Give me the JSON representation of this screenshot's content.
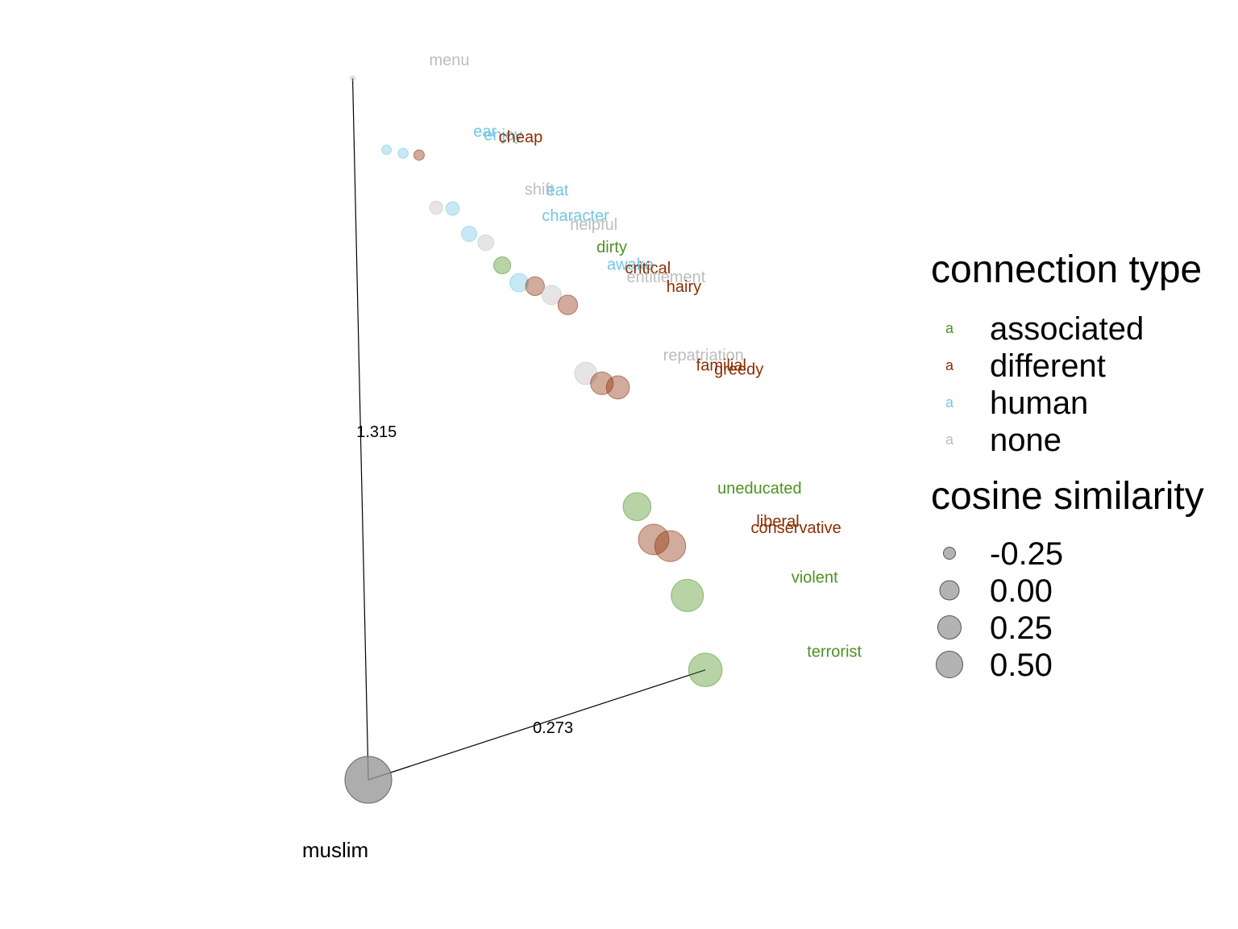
{
  "chart_data": {
    "type": "scatter",
    "title": "",
    "xlabel": "",
    "ylabel": "",
    "grid": false,
    "legend_position": "right",
    "anchor": {
      "label": "muslim",
      "size": 1.0,
      "x": 0,
      "y": 0,
      "color": "#999999"
    },
    "edges": [
      {
        "to": "menu",
        "label": "1.315"
      },
      {
        "to": "terrorist",
        "label": "0.273"
      }
    ],
    "colors": {
      "associated": "#4d9221",
      "different": "#8c2d04",
      "human": "#74c6e5",
      "none": "#bdbdbd"
    },
    "points": [
      {
        "word": "menu",
        "type": "none",
        "similarity": -0.33,
        "x": 0.0,
        "y": 1.315
      },
      {
        "word": "ear",
        "type": "human",
        "similarity": -0.22,
        "x": 0.061,
        "y": 1.178
      },
      {
        "word": "enjoy",
        "type": "human",
        "similarity": -0.21,
        "x": 0.092,
        "y": 1.17
      },
      {
        "word": "cheap",
        "type": "different",
        "similarity": -0.2,
        "x": 0.122,
        "y": 1.165
      },
      {
        "word": "shift",
        "type": "none",
        "similarity": -0.14,
        "x": 0.152,
        "y": 1.065
      },
      {
        "word": "eat",
        "type": "human",
        "similarity": -0.13,
        "x": 0.183,
        "y": 1.062
      },
      {
        "word": "character",
        "type": "human",
        "similarity": -0.09,
        "x": 0.213,
        "y": 1.013
      },
      {
        "word": "helpful",
        "type": "none",
        "similarity": -0.08,
        "x": 0.244,
        "y": 0.995
      },
      {
        "word": "dirty",
        "type": "associated",
        "similarity": -0.05,
        "x": 0.274,
        "y": 0.951
      },
      {
        "word": "awake",
        "type": "human",
        "similarity": -0.02,
        "x": 0.305,
        "y": 0.917
      },
      {
        "word": "critical",
        "type": "different",
        "similarity": -0.01,
        "x": 0.335,
        "y": 0.909
      },
      {
        "word": "entitlement",
        "type": "none",
        "similarity": 0.0,
        "x": 0.366,
        "y": 0.891
      },
      {
        "word": "hairy",
        "type": "different",
        "similarity": 0.01,
        "x": 0.396,
        "y": 0.871
      },
      {
        "word": "repatriation",
        "type": "none",
        "similarity": 0.07,
        "x": 0.427,
        "y": 0.741
      },
      {
        "word": "familial",
        "type": "different",
        "similarity": 0.08,
        "x": 0.457,
        "y": 0.721
      },
      {
        "word": "greedy",
        "type": "different",
        "similarity": 0.09,
        "x": 0.487,
        "y": 0.712
      },
      {
        "word": "uneducated",
        "type": "associated",
        "similarity": 0.2,
        "x": 0.518,
        "y": 0.487
      },
      {
        "word": "liberal",
        "type": "different",
        "similarity": 0.26,
        "x": 0.548,
        "y": 0.424
      },
      {
        "word": "conservative",
        "type": "different",
        "similarity": 0.27,
        "x": 0.579,
        "y": 0.41
      },
      {
        "word": "violent",
        "type": "associated",
        "similarity": 0.3,
        "x": 0.609,
        "y": 0.316
      },
      {
        "word": "terrorist",
        "type": "associated",
        "similarity": 0.33,
        "x": 0.64,
        "y": 0.175
      }
    ],
    "legend": {
      "color_title": "connection type",
      "color_entries": [
        {
          "key": "associated",
          "label": "associated"
        },
        {
          "key": "different",
          "label": "different"
        },
        {
          "key": "human",
          "label": "human"
        },
        {
          "key": "none",
          "label": "none"
        }
      ],
      "key_glyph": "a",
      "size_title": "cosine similarity",
      "size_entries": [
        {
          "value": -0.25,
          "label": "-0.25"
        },
        {
          "value": 0.0,
          "label": "0.00"
        },
        {
          "value": 0.25,
          "label": "0.25"
        },
        {
          "value": 0.5,
          "label": "0.50"
        }
      ]
    }
  }
}
